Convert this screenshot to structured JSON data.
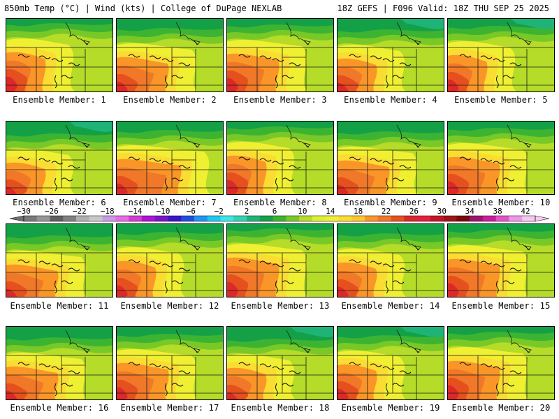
{
  "header": {
    "left": "850mb Temp (°C) | Wind (kts) | College of DuPage NEXLAB",
    "right": "18Z GEFS | F096 Valid: 18Z THU SEP 25 2025"
  },
  "colorbar": {
    "ticks": [
      "−30",
      "−26",
      "−22",
      "−18",
      "−14",
      "−10",
      "−6",
      "−2",
      "2",
      "6",
      "10",
      "14",
      "18",
      "22",
      "26",
      "30",
      "34",
      "38",
      "42"
    ],
    "colors": [
      "#7a7a7a",
      "#969696",
      "#5f5f5f",
      "#808080",
      "#b0b0b0",
      "#c8c8c8",
      "#c89be6",
      "#e66be6",
      "#d23cd2",
      "#aa14d2",
      "#7a14c8",
      "#3c14c8",
      "#1e50dc",
      "#1e96f0",
      "#1ec8f0",
      "#3ce6e6",
      "#32d2b4",
      "#1eb478",
      "#14a046",
      "#3cb432",
      "#78c828",
      "#b4dc28",
      "#dcf032",
      "#f0f032",
      "#fadc32",
      "#fac828",
      "#fa9628",
      "#f07828",
      "#e6501e",
      "#dc2828",
      "#e61e3c",
      "#c81428",
      "#a01414",
      "#7a0a0a",
      "#a0146e",
      "#c81ea0",
      "#e650c8",
      "#f096e6",
      "#f8c8f0"
    ]
  },
  "members": [
    {
      "label": "Ensemble Member: 1"
    },
    {
      "label": "Ensemble Member: 2"
    },
    {
      "label": "Ensemble Member: 3"
    },
    {
      "label": "Ensemble Member: 4"
    },
    {
      "label": "Ensemble Member: 5"
    },
    {
      "label": "Ensemble Member: 6"
    },
    {
      "label": "Ensemble Member: 7"
    },
    {
      "label": "Ensemble Member: 8"
    },
    {
      "label": "Ensemble Member: 9"
    },
    {
      "label": "Ensemble Member: 10"
    },
    {
      "label": "Ensemble Member: 11"
    },
    {
      "label": "Ensemble Member: 12"
    },
    {
      "label": "Ensemble Member: 13"
    },
    {
      "label": "Ensemble Member: 14"
    },
    {
      "label": "Ensemble Member: 15"
    },
    {
      "label": "Ensemble Member: 16"
    },
    {
      "label": "Ensemble Member: 17"
    },
    {
      "label": "Ensemble Member: 18"
    },
    {
      "label": "Ensemble Member: 19"
    },
    {
      "label": "Ensemble Member: 20"
    }
  ],
  "map_colors": {
    "cold": "#14a046",
    "cool": "#3cb432",
    "mild": "#78c828",
    "lime": "#b4dc28",
    "yellow": "#f0f032",
    "gold": "#fadc32",
    "orange": "#fa9628",
    "darkorange": "#f07828",
    "red": "#e6501e",
    "hot": "#dc2828",
    "teal": "#1eb478"
  }
}
